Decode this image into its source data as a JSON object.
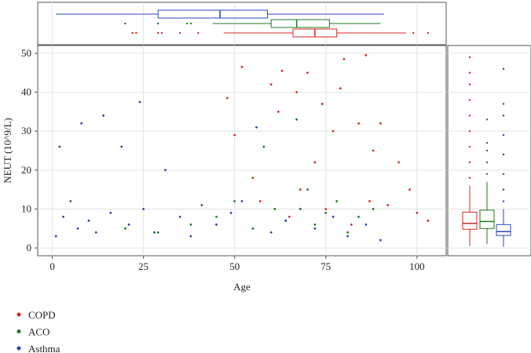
{
  "chart_data": {
    "type": "scatter",
    "x_label": "Age",
    "y_label": "NEUT (10^9/L)",
    "xlim": [
      -4,
      108
    ],
    "xticks": [
      0,
      25,
      50,
      75,
      100
    ],
    "ylim": [
      -2,
      52
    ],
    "yticks": [
      0,
      10,
      20,
      30,
      40,
      50
    ],
    "grid": true,
    "legend": "bottom-left",
    "series": [
      {
        "name": "COPD",
        "color": "#d62a20",
        "x": [
          48,
          50,
          52,
          55,
          57,
          60,
          62,
          63,
          65,
          67,
          68,
          70,
          72,
          74,
          75,
          77,
          79,
          80,
          82,
          84,
          86,
          87,
          88,
          90,
          92,
          95,
          98,
          100,
          103
        ],
        "values": [
          38.5,
          29,
          46.5,
          18,
          12,
          42,
          35,
          45.5,
          8,
          40,
          15,
          45,
          22,
          37,
          10,
          30,
          41,
          48.5,
          6,
          32,
          49.5,
          12,
          25,
          32,
          11,
          22,
          15,
          9,
          7
        ],
        "age_box": {
          "low": 47,
          "q1": 66,
          "median": 72,
          "q3": 78,
          "high": 97,
          "outliers": [
            22,
            23,
            29,
            30,
            35,
            40,
            99,
            103
          ]
        },
        "neut_box": {
          "low": 0.5,
          "q1": 4.8,
          "median": 6.3,
          "q3": 9.2,
          "high": 16,
          "outliers": [
            18,
            22,
            26,
            30,
            34,
            38,
            42,
            45,
            49
          ]
        }
      },
      {
        "name": "ACO",
        "color": "#1f7a1f",
        "x": [
          20,
          29,
          38,
          45,
          50,
          55,
          58,
          61,
          64,
          67,
          70,
          72,
          75,
          78,
          81,
          84,
          88
        ],
        "values": [
          5,
          4,
          6,
          8,
          12,
          5,
          26,
          10,
          7,
          33,
          15,
          6,
          9,
          12,
          4,
          8,
          10
        ],
        "age_box": {
          "low": 44,
          "q1": 60,
          "median": 67,
          "q3": 76,
          "high": 90,
          "outliers": [
            20,
            29,
            37,
            38
          ]
        },
        "neut_box": {
          "low": 1,
          "q1": 5,
          "median": 6.8,
          "q3": 9.7,
          "high": 17,
          "outliers": [
            19,
            22,
            25,
            27,
            33
          ]
        }
      },
      {
        "name": "Asthma",
        "color": "#2449b5",
        "x": [
          1,
          2,
          3,
          5,
          7,
          8,
          10,
          12,
          14,
          16,
          19,
          21,
          24,
          25,
          28,
          31,
          35,
          38,
          41,
          45,
          49,
          52,
          56,
          60,
          64,
          68,
          72,
          77,
          81,
          86,
          90
        ],
        "values": [
          3,
          26,
          8,
          12,
          5,
          32,
          7,
          4,
          34,
          9,
          26,
          6,
          37.5,
          10,
          4,
          20,
          8,
          3,
          11,
          6,
          9,
          12,
          31,
          4,
          7,
          10,
          5,
          8,
          3,
          6,
          2
        ],
        "age_box": {
          "low": 1,
          "q1": 29,
          "median": 46,
          "q3": 59,
          "high": 91,
          "outliers": []
        },
        "neut_box": {
          "low": 0.3,
          "q1": 3.2,
          "median": 4.2,
          "q3": 6,
          "high": 10,
          "outliers": [
            12,
            15,
            19,
            24,
            29,
            34,
            37,
            46
          ]
        }
      }
    ]
  }
}
